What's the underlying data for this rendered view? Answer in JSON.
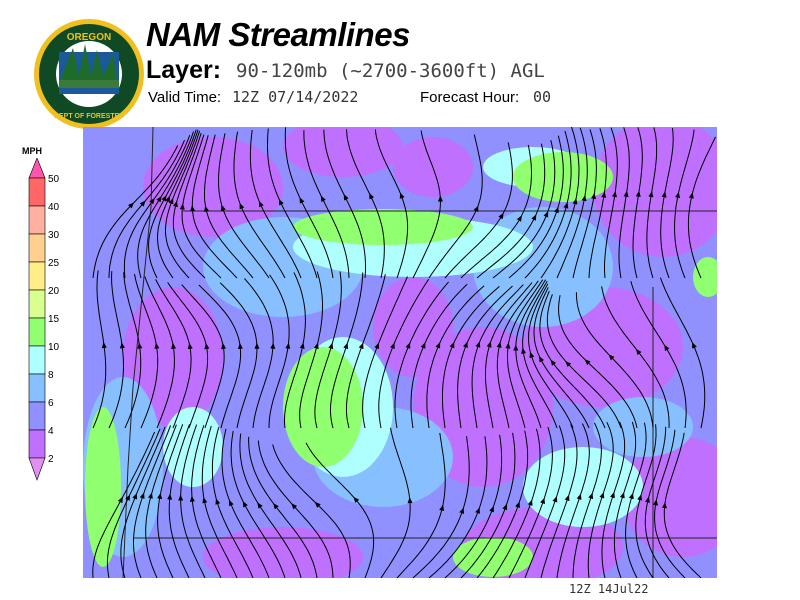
{
  "header": {
    "title": "NAM Streamlines",
    "layer_label": "Layer:",
    "layer_value": "90-120mb (~2700-3600ft) AGL",
    "valid_label": "Valid Time:",
    "valid_value": "12Z 07/14/2022",
    "forecast_label": "Forecast Hour:",
    "forecast_value": "00"
  },
  "logo": {
    "top_text": "OREGON",
    "ring_text": "DEPARTMENT OF FORESTRY"
  },
  "legend": {
    "units": "MPH",
    "levels": [
      "50",
      "40",
      "30",
      "25",
      "20",
      "15",
      "10",
      "8",
      "6",
      "4",
      "2"
    ],
    "colors": {
      "above_50": "#ff55b0",
      "40-50": "#ff6666",
      "30-40": "#ffb0a0",
      "25-30": "#ffd090",
      "20-25": "#ffee88",
      "15-20": "#d8ff90",
      "10-15": "#90ff70",
      "8-10": "#b0ffff",
      "6-8": "#88c0ff",
      "4-6": "#9090ff",
      "2-4": "#c070ff",
      "below_2": "#e090f0"
    }
  },
  "map": {
    "timestamp": "12Z 14Jul22"
  }
}
